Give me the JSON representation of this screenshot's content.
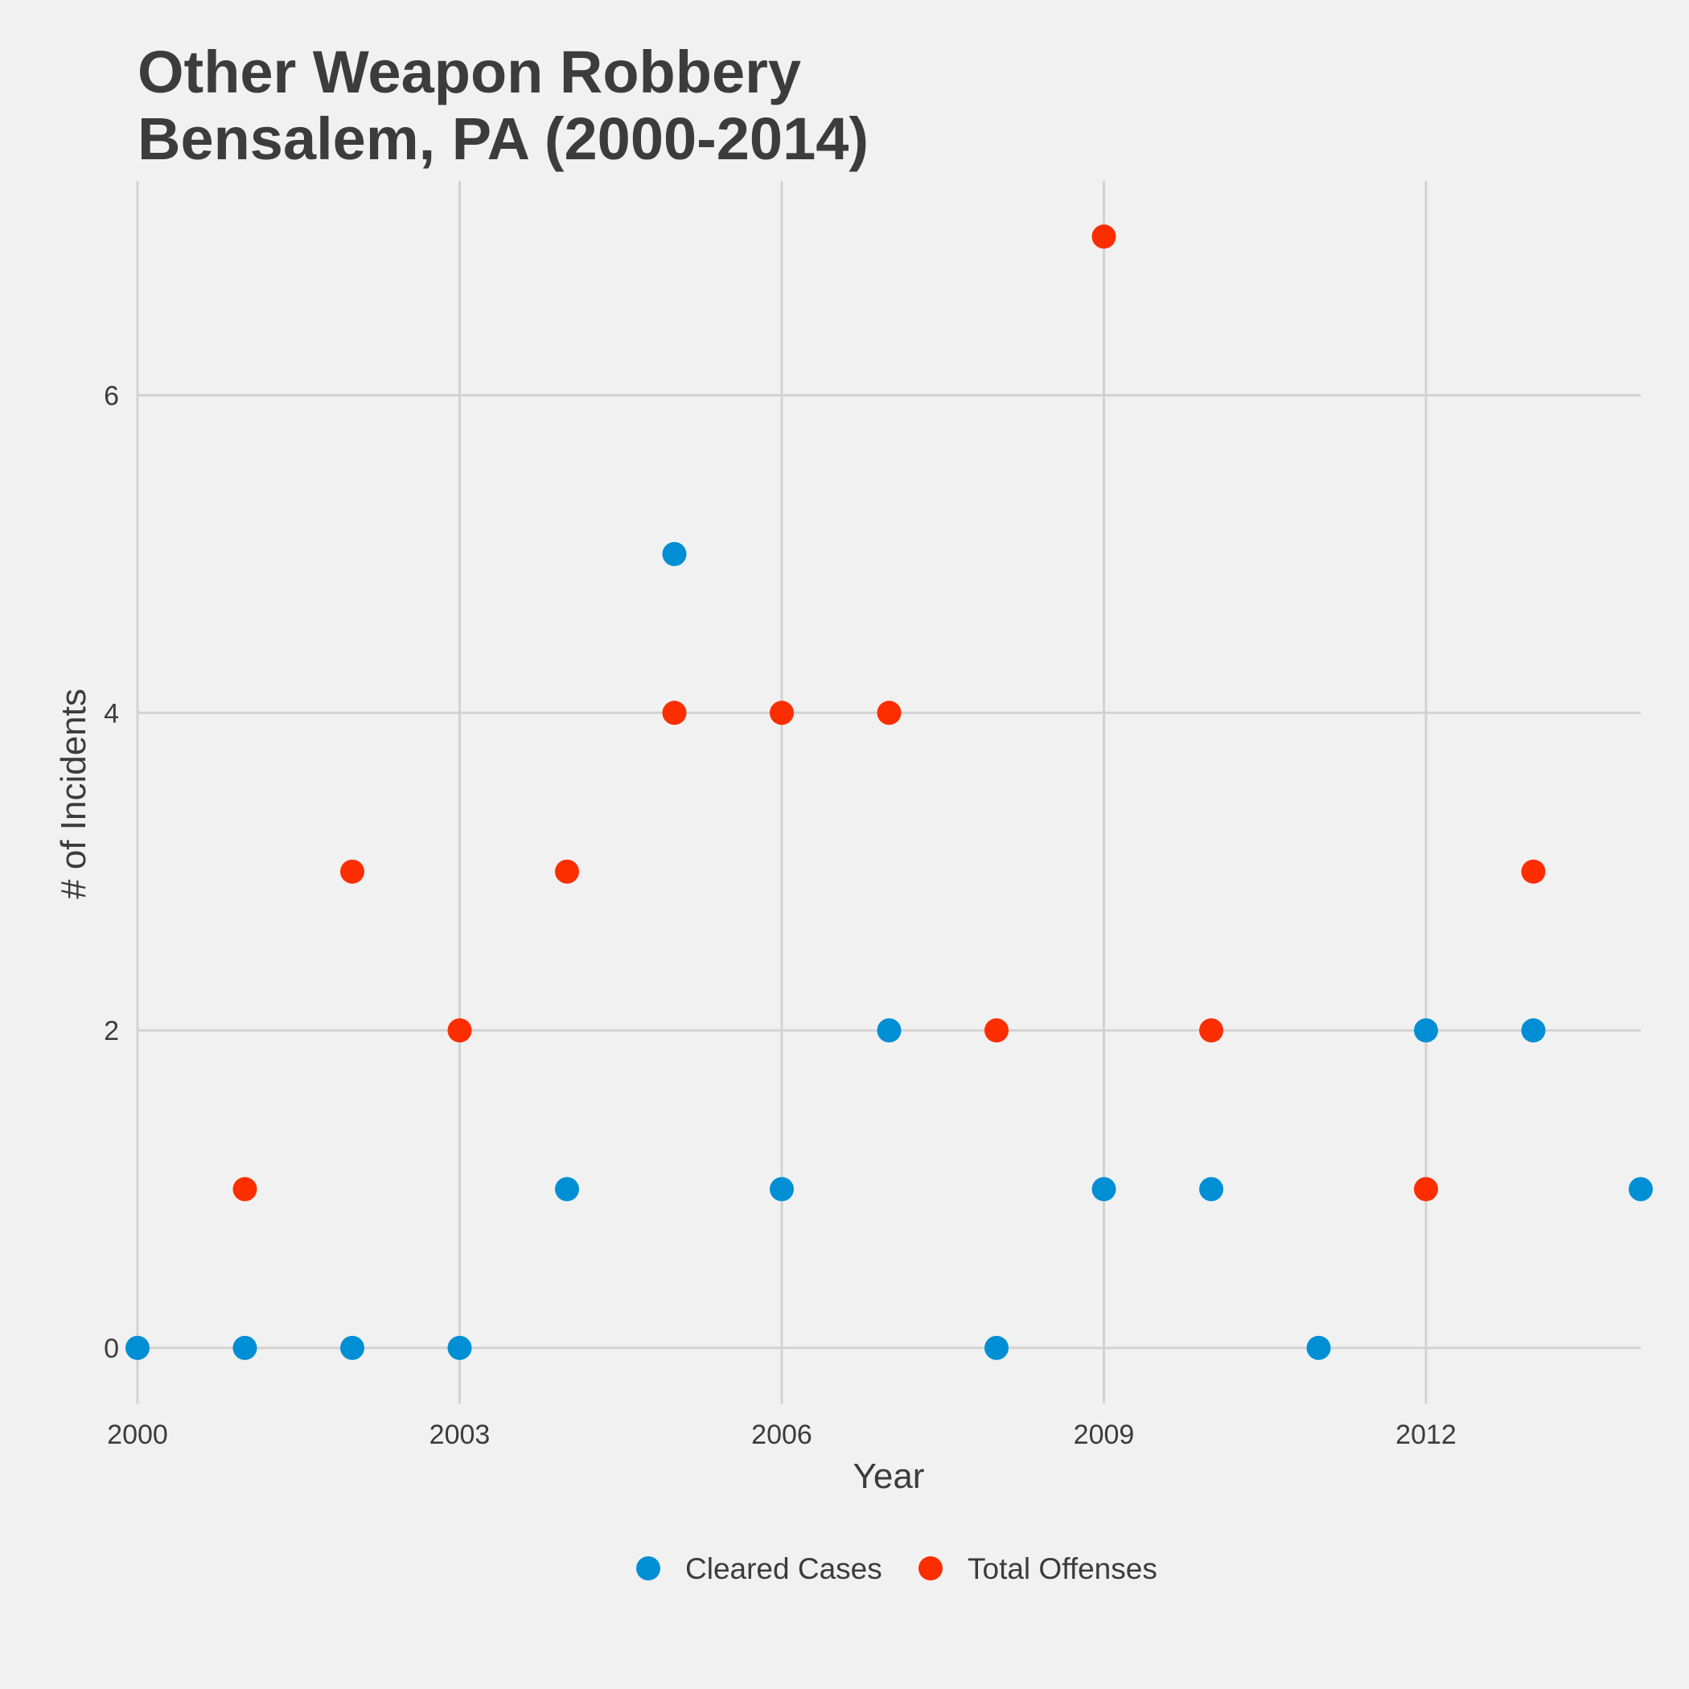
{
  "chart_data": {
    "type": "scatter",
    "title": [
      "Other Weapon Robbery",
      "Bensalem, PA (2000-2014)"
    ],
    "xlabel": "Year",
    "ylabel": "# of Incidents",
    "x": [
      2000,
      2001,
      2002,
      2003,
      2004,
      2005,
      2006,
      2007,
      2008,
      2009,
      2010,
      2011,
      2012,
      2013,
      2014
    ],
    "xlim": [
      2000,
      2014
    ],
    "ylim": [
      -0.35,
      7.35
    ],
    "xticks": [
      2000,
      2003,
      2006,
      2009,
      2012
    ],
    "yticks": [
      0,
      2,
      4,
      6
    ],
    "xtick_labels": [
      "2000",
      "2003",
      "2006",
      "2009",
      "2012"
    ],
    "ytick_labels": [
      "0",
      "2",
      "4",
      "6"
    ],
    "grid": true,
    "legend_position": "bottom",
    "series": [
      {
        "name": "Cleared Cases",
        "color": "#008fd5",
        "values": [
          0,
          0,
          0,
          0,
          1,
          5,
          1,
          2,
          0,
          1,
          1,
          0,
          2,
          2,
          1
        ]
      },
      {
        "name": "Total Offenses",
        "color": "#fc2e00",
        "values": [
          null,
          1,
          3,
          2,
          3,
          4,
          4,
          4,
          2,
          7,
          2,
          null,
          1,
          3,
          null
        ]
      }
    ]
  }
}
